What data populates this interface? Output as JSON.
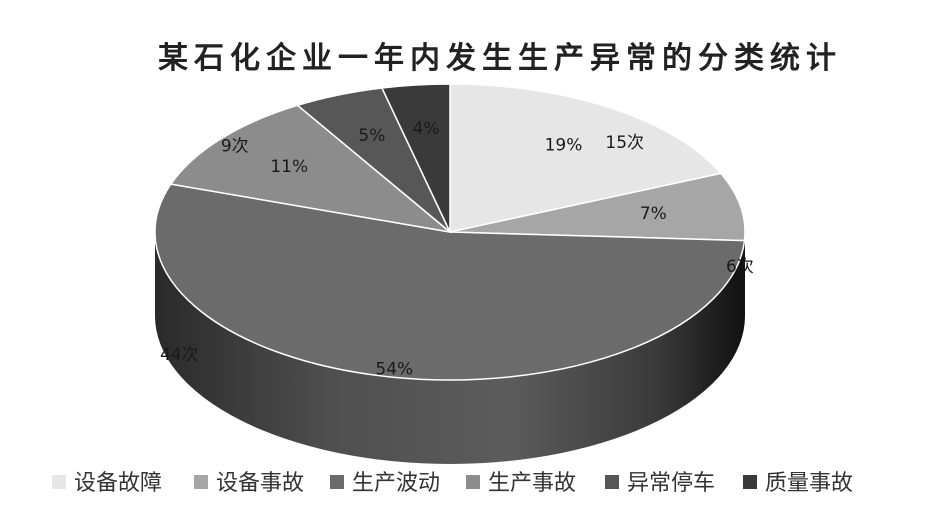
{
  "chart_data": {
    "type": "pie",
    "title": "某石化企业一年内发生生产异常的分类统计",
    "categories": [
      "设备故障",
      "设备事故",
      "生产波动",
      "生产事故",
      "异常停车",
      "质量事故"
    ],
    "values": [
      15,
      6,
      44,
      9,
      4,
      3
    ],
    "percent_labels": [
      "19%",
      "7%",
      "54%",
      "11%",
      "5%",
      "4%"
    ],
    "count_labels": [
      "15次",
      "6次",
      "44次",
      "9次",
      "",
      ""
    ],
    "colors": [
      "#e6e6e6",
      "#a6a6a6",
      "#6b6b6b",
      "#8c8c8c",
      "#575757",
      "#3a3a3a"
    ],
    "legend_position": "bottom"
  }
}
